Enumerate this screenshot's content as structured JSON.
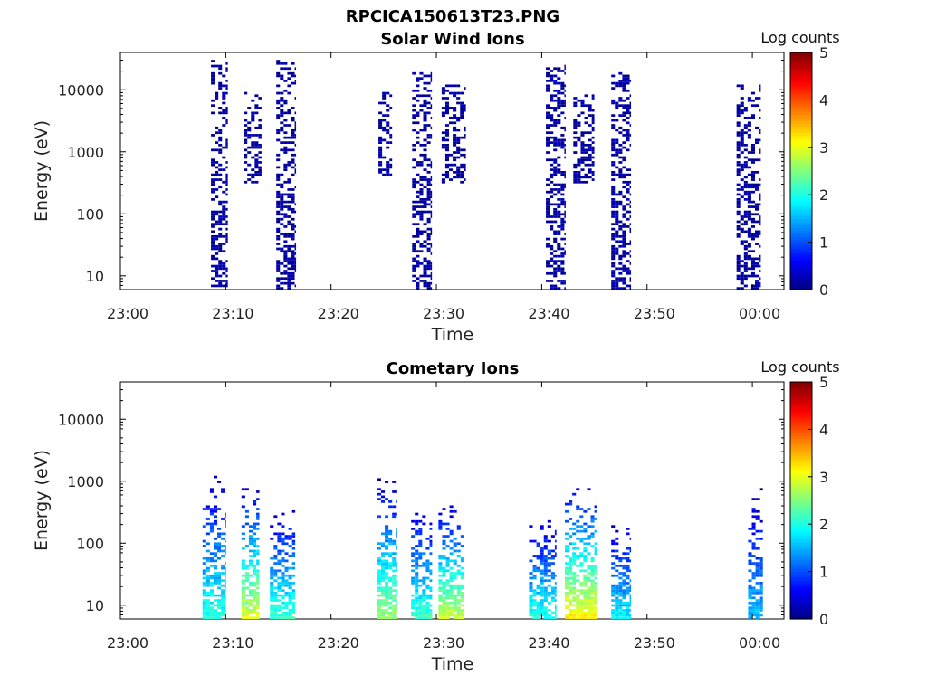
{
  "figure": {
    "title": "RPCICA150613T23.PNG"
  },
  "colors": {
    "colormap": [
      "#000080",
      "#0000ff",
      "#0080ff",
      "#00ffff",
      "#80ff80",
      "#ffff00",
      "#ff8000",
      "#ff0000",
      "#800000"
    ]
  },
  "chart_data": [
    {
      "type": "heatmap",
      "title": "Solar Wind Ions",
      "xlabel": "Time",
      "ylabel": "Energy (eV)",
      "yscale": "log",
      "xtick_labels": [
        "23:00",
        "23:10",
        "23:20",
        "23:30",
        "23:40",
        "23:50",
        "00:00"
      ],
      "xlim_minutes": [
        0,
        63
      ],
      "ytick_values": [
        10,
        100,
        1000,
        10000
      ],
      "ytick_labels": [
        "10",
        "100",
        "1000",
        "10000"
      ],
      "ylim": [
        6,
        40000
      ],
      "colorbar": {
        "label": "Log counts",
        "range": [
          0,
          5
        ],
        "ticks": [
          "0",
          "1",
          "2",
          "3",
          "4",
          "5"
        ]
      },
      "value_units": "log counts",
      "bursts": [
        {
          "t_start": 8.6,
          "t_end": 10.2,
          "e_min": 6,
          "e_max": 30000,
          "level": 0.3
        },
        {
          "t_start": 11.7,
          "t_end": 13.4,
          "e_min": 300,
          "e_max": 9000,
          "level": 0.2
        },
        {
          "t_start": 14.8,
          "t_end": 16.6,
          "e_min": 6,
          "e_max": 30000,
          "level": 0.3
        },
        {
          "t_start": 24.5,
          "t_end": 25.8,
          "e_min": 400,
          "e_max": 9000,
          "level": 0.2
        },
        {
          "t_start": 27.7,
          "t_end": 29.5,
          "e_min": 6,
          "e_max": 20000,
          "level": 0.3
        },
        {
          "t_start": 30.5,
          "t_end": 32.8,
          "e_min": 300,
          "e_max": 12000,
          "level": 0.2
        },
        {
          "t_start": 40.4,
          "t_end": 42.2,
          "e_min": 6,
          "e_max": 25000,
          "level": 0.3
        },
        {
          "t_start": 43.0,
          "t_end": 45.0,
          "e_min": 300,
          "e_max": 9000,
          "level": 0.2
        },
        {
          "t_start": 46.6,
          "t_end": 48.4,
          "e_min": 6,
          "e_max": 20000,
          "level": 0.3
        },
        {
          "t_start": 58.5,
          "t_end": 60.8,
          "e_min": 6,
          "e_max": 12000,
          "level": 0.3
        }
      ]
    },
    {
      "type": "heatmap",
      "title": "Cometary Ions",
      "xlabel": "Time",
      "ylabel": "Energy (eV)",
      "yscale": "log",
      "xtick_labels": [
        "23:00",
        "23:10",
        "23:20",
        "23:30",
        "23:40",
        "23:50",
        "00:00"
      ],
      "xlim_minutes": [
        0,
        63
      ],
      "ytick_values": [
        10,
        100,
        1000,
        10000
      ],
      "ytick_labels": [
        "10",
        "100",
        "1000",
        "10000"
      ],
      "ylim": [
        6,
        40000
      ],
      "colorbar": {
        "label": "Log counts",
        "range": [
          0,
          5
        ],
        "ticks": [
          "0",
          "1",
          "2",
          "3",
          "4",
          "5"
        ]
      },
      "value_units": "log counts",
      "bursts": [
        {
          "t_start": 7.8,
          "t_end": 10.0,
          "e_min": 6,
          "e_max": 1400,
          "level": 1.8
        },
        {
          "t_start": 11.5,
          "t_end": 13.2,
          "e_min": 6,
          "e_max": 800,
          "level": 2.6
        },
        {
          "t_start": 14.2,
          "t_end": 16.6,
          "e_min": 6,
          "e_max": 400,
          "level": 1.9
        },
        {
          "t_start": 24.4,
          "t_end": 26.2,
          "e_min": 6,
          "e_max": 1100,
          "level": 2.3
        },
        {
          "t_start": 27.6,
          "t_end": 29.6,
          "e_min": 6,
          "e_max": 400,
          "level": 1.9
        },
        {
          "t_start": 30.2,
          "t_end": 32.6,
          "e_min": 6,
          "e_max": 450,
          "level": 2.5
        },
        {
          "t_start": 38.8,
          "t_end": 41.4,
          "e_min": 6,
          "e_max": 250,
          "level": 1.8
        },
        {
          "t_start": 42.2,
          "t_end": 45.2,
          "e_min": 6,
          "e_max": 800,
          "level": 2.8
        },
        {
          "t_start": 46.6,
          "t_end": 48.4,
          "e_min": 6,
          "e_max": 250,
          "level": 1.6
        },
        {
          "t_start": 59.6,
          "t_end": 61.0,
          "e_min": 6,
          "e_max": 750,
          "level": 1.4
        }
      ]
    }
  ]
}
